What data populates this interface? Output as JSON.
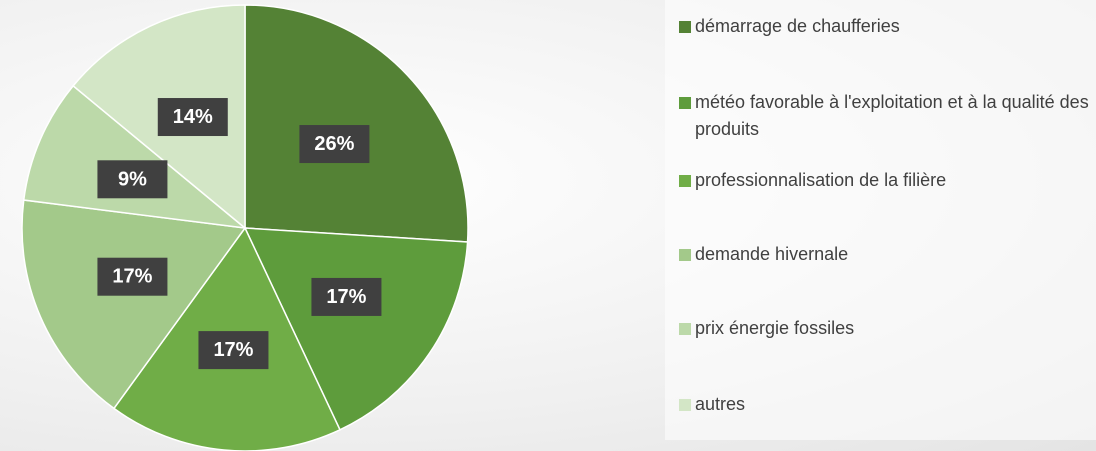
{
  "chart_data": {
    "type": "pie",
    "categories": [
      "démarrage de chaufferies",
      "météo favorable à l'exploitation et à la qualité des produits",
      "professionnalisation de la filière",
      "demande hivernale",
      "prix énergie fossiles",
      "autres"
    ],
    "values": [
      26,
      17,
      17,
      17,
      9,
      14
    ],
    "value_labels": [
      "26%",
      "17%",
      "17%",
      "17%",
      "9%",
      "14%"
    ],
    "colors": [
      "#548235",
      "#5e9c3c",
      "#70ad47",
      "#a3c98a",
      "#bcd9a9",
      "#d3e6c6"
    ],
    "legend": "right"
  }
}
